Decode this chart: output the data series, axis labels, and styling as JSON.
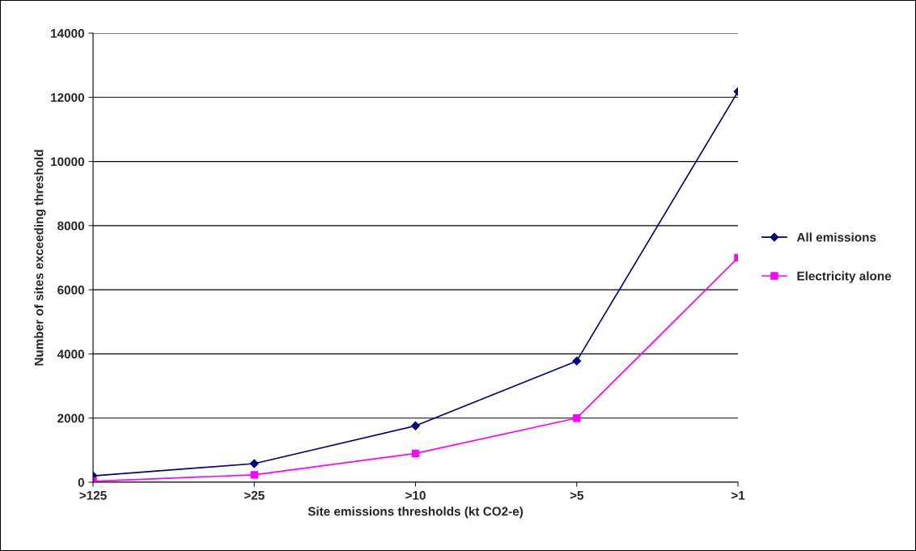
{
  "chart_data": {
    "type": "line",
    "xlabel": "Site emissions thresholds (kt CO2-e)",
    "ylabel": "Number of sites exceeding threshold",
    "categories": [
      ">125",
      ">25",
      ">10",
      ">5",
      ">1"
    ],
    "series": [
      {
        "name": "All emissions",
        "color": "#000080",
        "marker": "diamond",
        "values": [
          200,
          580,
          1760,
          3780,
          12180
        ]
      },
      {
        "name": "Electricity alone",
        "color": "#ff00ff",
        "marker": "square",
        "values": [
          30,
          230,
          900,
          2000,
          7000
        ]
      }
    ],
    "ylim": [
      0,
      14000
    ],
    "yticks": [
      0,
      2000,
      4000,
      6000,
      8000,
      10000,
      12000,
      14000
    ],
    "grid": "y",
    "legend": "right",
    "line_style": "solid"
  }
}
